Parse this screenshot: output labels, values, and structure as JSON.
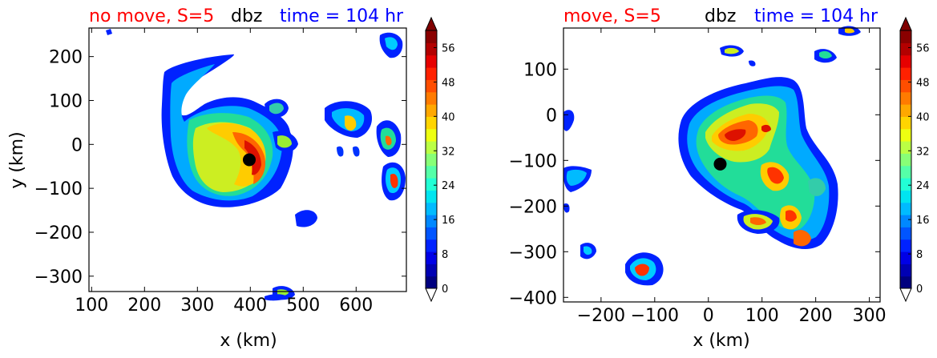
{
  "chart_data": [
    {
      "type": "heatmap",
      "title_left": "no move, S=5",
      "title_center": "dbz",
      "title_right": "time = 104 hr",
      "xlabel": "x (km)",
      "ylabel": "y (km)",
      "xlim": [
        95,
        695
      ],
      "ylim": [
        -335,
        265
      ],
      "xticks": [
        100,
        200,
        300,
        400,
        500,
        600
      ],
      "yticks": [
        200,
        100,
        0,
        -100,
        -200,
        -300
      ],
      "xtick_labels": [
        "100",
        "200",
        "300",
        "400",
        "500",
        "600"
      ],
      "ytick_labels": [
        "200",
        "100",
        "0",
        "−100",
        "−200",
        "−300"
      ],
      "center_marker": {
        "x": 398,
        "y": -35
      },
      "colorbar": {
        "min": 0,
        "max": 60,
        "ticks": [
          0,
          8,
          16,
          24,
          32,
          40,
          48,
          56
        ],
        "extend": "both"
      }
    },
    {
      "type": "heatmap",
      "title_left": "move, S=5",
      "title_center": "dbz",
      "title_right": "time = 104 hr",
      "xlabel": "x (km)",
      "ylabel": "",
      "xlim": [
        -270,
        320
      ],
      "ylim": [
        -410,
        190
      ],
      "xticks": [
        -200,
        -100,
        0,
        100,
        200,
        300
      ],
      "yticks": [
        100,
        0,
        -100,
        -200,
        -300,
        -400
      ],
      "xtick_labels": [
        "−200",
        "−100",
        "0",
        "100",
        "200",
        "300"
      ],
      "ytick_labels": [
        "100",
        "0",
        "−100",
        "−200",
        "−300",
        "−400"
      ],
      "center_marker": {
        "x": 22,
        "y": -108
      },
      "colorbar": {
        "min": 0,
        "max": 60,
        "ticks": [
          0,
          8,
          16,
          24,
          32,
          40,
          48,
          56
        ],
        "extend": "both"
      }
    }
  ],
  "colors": {
    "title_left": "#ff0000",
    "title_center": "#000000",
    "title_right": "#0000ff",
    "marker": "#000000"
  }
}
